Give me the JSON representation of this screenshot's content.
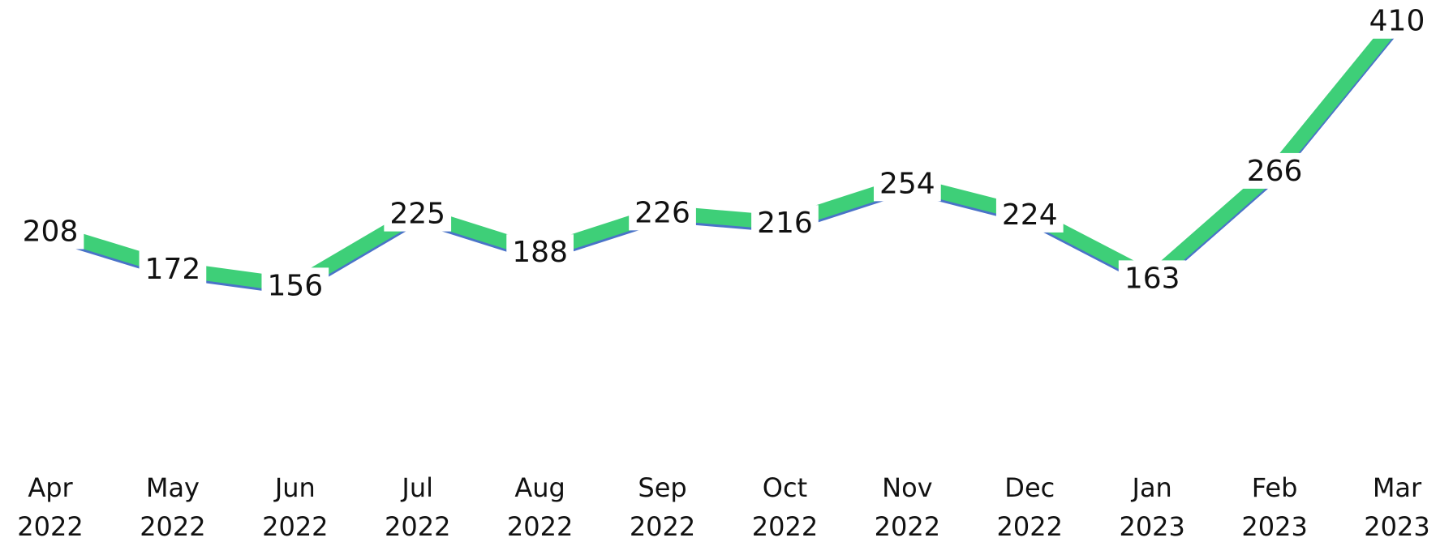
{
  "chart_data": {
    "type": "line",
    "categories": [
      "Apr 2022",
      "May 2022",
      "Jun 2022",
      "Jul 2022",
      "Aug 2022",
      "Sep 2022",
      "Oct 2022",
      "Nov 2022",
      "Dec 2022",
      "Jan 2023",
      "Feb 2023",
      "Mar 2023"
    ],
    "values": [
      208,
      172,
      156,
      225,
      188,
      226,
      216,
      254,
      224,
      163,
      266,
      410
    ],
    "color": "#3ecf78",
    "ylim": [
      0,
      430
    ]
  }
}
